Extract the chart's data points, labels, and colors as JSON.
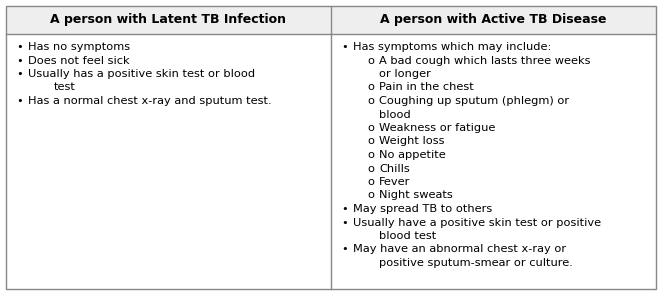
{
  "header_left": "A person with Latent TB Infection",
  "header_right": "A person with Active TB Disease",
  "header_bg": "#eeeeee",
  "cell_bg": "#ffffff",
  "border_color": "#888888",
  "header_font_size": 9.0,
  "body_font_size": 8.2,
  "figsize": [
    6.62,
    2.95
  ],
  "dpi": 100,
  "left_items": [
    [
      "•",
      0,
      "Has no symptoms"
    ],
    [
      "•",
      0,
      "Does not feel sick"
    ],
    [
      "•",
      0,
      "Usually has a positive skin test or blood"
    ],
    [
      "",
      1,
      "test"
    ],
    [
      "•",
      0,
      "Has a normal chest x-ray and sputum test."
    ]
  ],
  "right_items": [
    [
      "•",
      0,
      "Has symptoms which may include:"
    ],
    [
      "o",
      1,
      "A bad cough which lasts three weeks"
    ],
    [
      "",
      2,
      "or longer"
    ],
    [
      "o",
      1,
      "Pain in the chest"
    ],
    [
      "o",
      1,
      "Coughing up sputum (phlegm) or"
    ],
    [
      "",
      2,
      "blood"
    ],
    [
      "o",
      1,
      "Weakness or fatigue"
    ],
    [
      "o",
      1,
      "Weight loss"
    ],
    [
      "o",
      1,
      "No appetite"
    ],
    [
      "o",
      1,
      "Chills"
    ],
    [
      "o",
      1,
      "Fever"
    ],
    [
      "o",
      1,
      "Night sweats"
    ],
    [
      "•",
      0,
      "May spread TB to others"
    ],
    [
      "•",
      0,
      "Usually have a positive skin test or positive"
    ],
    [
      "",
      1,
      "blood test"
    ],
    [
      "•",
      0,
      "May have an abnormal chest x-ray or"
    ],
    [
      "",
      1,
      "positive sputum-smear or culture."
    ]
  ]
}
